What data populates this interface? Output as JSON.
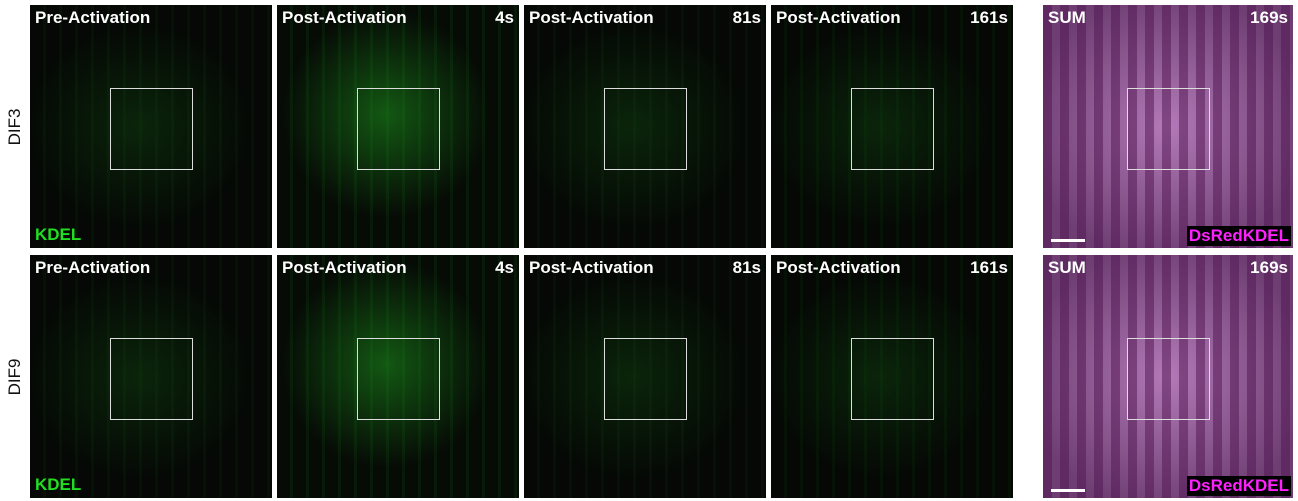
{
  "rows": [
    {
      "label": "DIF3",
      "panels": [
        {
          "title": "Pre-Activation",
          "channel": "KDEL"
        },
        {
          "title": "Post-Activation",
          "time": "4s"
        },
        {
          "title": "Post-Activation",
          "time": "81s"
        },
        {
          "title": "Post-Activation",
          "time": "161s"
        },
        {
          "title": "SUM",
          "time": "169s",
          "channel": "DsRedKDEL"
        }
      ]
    },
    {
      "label": "DIF9",
      "panels": [
        {
          "title": "Pre-Activation",
          "channel": "KDEL"
        },
        {
          "title": "Post-Activation",
          "time": "4s"
        },
        {
          "title": "Post-Activation",
          "time": "81s"
        },
        {
          "title": "Post-Activation",
          "time": "161s"
        },
        {
          "title": "SUM",
          "time": "169s",
          "channel": "DsRedKDEL"
        }
      ]
    }
  ]
}
